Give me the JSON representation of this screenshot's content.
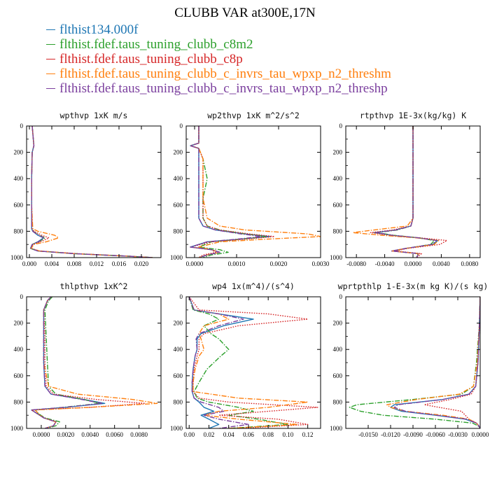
{
  "title": "CLUBB VAR at300E,17N",
  "legend": [
    {
      "label": "flthist134.000f",
      "color": "#1f77b4",
      "dash": "solid"
    },
    {
      "label": "flthist.fdef.taus_tuning_clubb_c8m2",
      "color": "#2ca02c",
      "dash": "dashdot"
    },
    {
      "label": "flthist.fdef.taus_tuning_clubb_c8p",
      "color": "#d62728",
      "dash": "dotted"
    },
    {
      "label": "flthist.fdef.taus_tuning_clubb_c_invrs_tau_wpxp_n2_threshm",
      "color": "#ff7f0e",
      "dash": "dashdot"
    },
    {
      "label": "flthist.fdef.taus_tuning_clubb_c_invrs_tau_wpxp_n2_threshp",
      "color": "#7b3f9e",
      "dash": "dashdot"
    }
  ],
  "chart_data": [
    {
      "type": "line",
      "title": "wpthvp  1xK m/s",
      "xlim": [
        -0.0005,
        0.0235
      ],
      "ylim": [
        1000,
        0
      ],
      "xticks": [
        "0.000",
        "0.004",
        "0.008",
        "0.012",
        "0.016",
        "0.020"
      ],
      "xtick_values": [
        0,
        0.004,
        0.008,
        0.012,
        0.016,
        0.02
      ],
      "yticks": [
        "0",
        "200",
        "400",
        "600",
        "800",
        "1000"
      ],
      "y": [
        0,
        150,
        200,
        400,
        600,
        780,
        800,
        830,
        850,
        880,
        900,
        930,
        950,
        970,
        990,
        1000
      ],
      "series": [
        {
          "values": [
            0.0005,
            0.0008,
            0.0005,
            0.0004,
            0.0004,
            0.0004,
            0.0006,
            0.0015,
            0.0025,
            0.0015,
            0.0005,
            0.0002,
            0.0015,
            0.008,
            0.018,
            0.022
          ]
        },
        {
          "values": [
            0.0005,
            0.0008,
            0.0005,
            0.0004,
            0.0004,
            0.0004,
            0.0007,
            0.0017,
            0.0028,
            0.0017,
            0.0005,
            0.0002,
            0.0016,
            0.008,
            0.018,
            0.022
          ]
        },
        {
          "values": [
            0.0005,
            0.0008,
            0.0005,
            0.0004,
            0.0004,
            0.0005,
            0.0008,
            0.0022,
            0.0035,
            0.002,
            0.0006,
            0.0003,
            0.0018,
            0.0085,
            0.018,
            0.022
          ]
        },
        {
          "values": [
            0.0005,
            0.0008,
            0.0005,
            0.0004,
            0.0004,
            0.0006,
            0.0015,
            0.0045,
            0.0052,
            0.003,
            0.0008,
            0.0003,
            0.0018,
            0.008,
            0.018,
            0.022
          ]
        },
        {
          "values": [
            0.0005,
            0.0008,
            0.0005,
            0.0004,
            0.0004,
            0.0004,
            0.0006,
            0.0016,
            0.0026,
            0.0016,
            0.0005,
            0.0002,
            0.0015,
            0.008,
            0.018,
            0.022
          ]
        }
      ]
    },
    {
      "type": "line",
      "title": "wp2thvp  1xK m^2/s^2",
      "xlim": [
        -0.0002,
        0.003
      ],
      "ylim": [
        1000,
        0
      ],
      "xticks": [
        "0.0000",
        "0.0010",
        "0.0020",
        "0.0030"
      ],
      "xtick_values": [
        0,
        0.001,
        0.002,
        0.003
      ],
      "yticks": [
        "0",
        "200",
        "400",
        "600",
        "800",
        "1000"
      ],
      "y": [
        0,
        130,
        150,
        170,
        250,
        400,
        550,
        700,
        760,
        790,
        820,
        840,
        860,
        880,
        920,
        940,
        960,
        980,
        1000
      ],
      "series": [
        {
          "values": [
            0.0001,
            0.0001,
            -0.0001,
            0.0001,
            0.0001,
            0.0001,
            0.0001,
            0.0001,
            0.0002,
            0.0005,
            0.0012,
            0.0018,
            0.0011,
            0.0003,
            -0.0001,
            0.0004,
            0.0006,
            0.0003,
            0.0001
          ]
        },
        {
          "values": [
            0.0001,
            0.0001,
            -0.0001,
            0.0001,
            0.0002,
            0.0003,
            0.0002,
            0.0002,
            0.0003,
            0.0006,
            0.0012,
            0.0017,
            0.0011,
            0.0004,
            0.0001,
            0.0006,
            0.0008,
            0.0004,
            0.0002
          ]
        },
        {
          "values": [
            0.0001,
            0.0001,
            -0.0001,
            0.0001,
            0.0002,
            0.0002,
            0.0002,
            0.0002,
            0.0003,
            0.0006,
            0.0013,
            0.0019,
            0.0012,
            0.0004,
            -0.0001,
            0.0004,
            0.0005,
            0.0002,
            0.0001
          ]
        },
        {
          "values": [
            0.0001,
            0.0001,
            -0.0001,
            0.0001,
            0.0002,
            0.0002,
            0.0002,
            0.0003,
            0.0006,
            0.0012,
            0.0027,
            0.003,
            0.0017,
            0.0006,
            0.0001,
            0.0004,
            0.0006,
            0.0003,
            0.0001
          ]
        },
        {
          "values": [
            0.0001,
            0.0001,
            -0.0001,
            0.0001,
            0.0001,
            0.0001,
            0.0001,
            0.0001,
            0.0002,
            0.0005,
            0.0011,
            0.0016,
            0.001,
            0.0003,
            -0.0001,
            0.0004,
            0.0006,
            0.0003,
            0.0001
          ]
        }
      ]
    },
    {
      "type": "line",
      "title": "rtpthvp  1E-3x(kg/kg) K",
      "xlim": [
        -0.0095,
        0.0095
      ],
      "ylim": [
        1000,
        0
      ],
      "xticks": [
        "-0.0080",
        "-0.0040",
        "0.0000",
        "0.0040",
        "0.0080"
      ],
      "xtick_values": [
        -0.008,
        -0.004,
        0,
        0.004,
        0.008
      ],
      "yticks": [
        "0",
        "200",
        "400",
        "600",
        "800",
        "1000"
      ],
      "y": [
        0,
        500,
        700,
        760,
        790,
        810,
        830,
        850,
        870,
        900,
        930,
        950,
        970,
        1000
      ],
      "series": [
        {
          "values": [
            0,
            0,
            0,
            -0.0003,
            -0.0025,
            -0.0055,
            -0.003,
            0.0008,
            0.0035,
            0.0028,
            -0.001,
            -0.003,
            0.0008,
            0.0005
          ]
        },
        {
          "values": [
            0,
            0,
            0,
            -0.0003,
            -0.0022,
            -0.005,
            -0.0028,
            0.0008,
            0.003,
            0.0025,
            -0.001,
            -0.0028,
            0.0007,
            0.0005
          ]
        },
        {
          "values": [
            0,
            0,
            0,
            -0.0003,
            -0.0028,
            -0.006,
            -0.0035,
            0.001,
            0.0048,
            0.0038,
            -0.0008,
            -0.0025,
            0.0012,
            0.0005
          ]
        },
        {
          "values": [
            0,
            0,
            0,
            -0.0008,
            -0.0055,
            -0.0085,
            -0.0045,
            0.0005,
            0.0036,
            0.003,
            -0.001,
            -0.003,
            0.0008,
            0.0005
          ]
        },
        {
          "values": [
            0,
            0,
            0,
            -0.0003,
            -0.0024,
            -0.0052,
            -0.003,
            0.0008,
            0.0033,
            0.0027,
            -0.001,
            -0.003,
            0.0008,
            0.0005
          ]
        }
      ]
    },
    {
      "type": "line",
      "title": "thlpthvp  1xK^2",
      "xlim": [
        -0.0012,
        0.0098
      ],
      "ylim": [
        1000,
        0
      ],
      "xticks": [
        "0.0000",
        "0.0020",
        "0.0040",
        "0.0060",
        "0.0080"
      ],
      "xtick_values": [
        0,
        0.002,
        0.004,
        0.006,
        0.008
      ],
      "yticks": [
        "0",
        "200",
        "400",
        "600",
        "800",
        "1000"
      ],
      "y": [
        0,
        30,
        100,
        300,
        500,
        680,
        740,
        780,
        810,
        840,
        860,
        890,
        920,
        950,
        980,
        1000
      ],
      "series": [
        {
          "values": [
            0.0008,
            0.0005,
            0.0002,
            0.0002,
            0.0002,
            0.0003,
            0.0008,
            0.0035,
            0.0052,
            0.002,
            -0.0008,
            -0.0003,
            0.0002,
            0.0012,
            0.001,
            0.0003
          ]
        },
        {
          "values": [
            0.0009,
            0.0006,
            0.0003,
            0.0004,
            0.0005,
            0.0006,
            0.0012,
            0.0035,
            0.0048,
            0.0018,
            -0.0005,
            -0.0002,
            0.0003,
            0.0015,
            0.0012,
            0.0004
          ]
        },
        {
          "values": [
            0.0008,
            0.0005,
            0.0002,
            0.0003,
            0.0003,
            0.0004,
            0.001,
            0.0045,
            0.0085,
            0.004,
            -0.0008,
            -0.0003,
            0.0002,
            0.0012,
            0.001,
            0.0003
          ]
        },
        {
          "values": [
            0.0008,
            0.0005,
            0.0002,
            0.0002,
            0.0002,
            0.0006,
            0.003,
            0.0075,
            0.0095,
            0.004,
            -0.0005,
            -0.0002,
            0.0002,
            0.0012,
            0.001,
            0.0003
          ]
        },
        {
          "values": [
            0.0008,
            0.0005,
            0.0002,
            0.0002,
            0.0002,
            0.0003,
            0.0008,
            0.0033,
            0.005,
            0.0019,
            -0.0008,
            -0.0003,
            0.0002,
            0.0012,
            0.001,
            0.0003
          ]
        }
      ]
    },
    {
      "type": "line",
      "title": "wp4  1x(m^4)/(s^4)",
      "xlim": [
        -0.003,
        0.133
      ],
      "ylim": [
        1000,
        0
      ],
      "xticks": [
        "0.00",
        "0.02",
        "0.04",
        "0.06",
        "0.08",
        "0.10",
        "0.12"
      ],
      "xtick_values": [
        0,
        0.02,
        0.04,
        0.06,
        0.08,
        0.1,
        0.12
      ],
      "yticks": [
        "0",
        "200",
        "400",
        "600",
        "800",
        "1000"
      ],
      "y": [
        0,
        100,
        130,
        170,
        220,
        280,
        320,
        400,
        450,
        550,
        650,
        720,
        770,
        800,
        840,
        870,
        900,
        930,
        970,
        1000
      ],
      "series": [
        {
          "values": [
            0,
            0.005,
            0.03,
            0.065,
            0.035,
            0.012,
            0.008,
            0.008,
            0.006,
            0.004,
            0.003,
            0.003,
            0.005,
            0.01,
            0.015,
            0.025,
            0.012,
            0.02,
            0.03,
            0.02
          ]
        },
        {
          "values": [
            0,
            0.004,
            0.02,
            0.03,
            0.015,
            0.022,
            0.03,
            0.04,
            0.032,
            0.018,
            0.01,
            0.005,
            0.008,
            0.02,
            0.05,
            0.065,
            0.04,
            0.07,
            0.1,
            0.04
          ]
        },
        {
          "values": [
            0,
            0.01,
            0.08,
            0.12,
            0.05,
            0.015,
            0.01,
            0.01,
            0.008,
            0.005,
            0.004,
            0.004,
            0.01,
            0.04,
            0.13,
            0.08,
            0.03,
            0.09,
            0.12,
            0.05
          ]
        },
        {
          "values": [
            0,
            0.005,
            0.03,
            0.04,
            0.015,
            0.01,
            0.012,
            0.015,
            0.01,
            0.006,
            0.004,
            0.004,
            0.05,
            0.12,
            0.08,
            0.03,
            0.015,
            0.05,
            0.11,
            0.04
          ]
        },
        {
          "values": [
            0,
            0.005,
            0.03,
            0.055,
            0.03,
            0.01,
            0.007,
            0.008,
            0.006,
            0.004,
            0.003,
            0.003,
            0.005,
            0.012,
            0.03,
            0.035,
            0.015,
            0.03,
            0.06,
            0.03
          ]
        }
      ]
    },
    {
      "type": "line",
      "title": "wprtpthlp  1-E-3x(m kg K)/(s kg)",
      "xlim": [
        -0.018,
        0.0
      ],
      "ylim": [
        1000,
        0
      ],
      "xticks": [
        "-0.0150",
        "-0.0120",
        "-0.0090",
        "-0.0060",
        "-0.0030",
        "0.0000"
      ],
      "xtick_values": [
        -0.015,
        -0.012,
        -0.009,
        -0.006,
        -0.003,
        0.0
      ],
      "yticks": [
        "0",
        "200",
        "400",
        "600",
        "800",
        "1000"
      ],
      "y": [
        0,
        200,
        500,
        680,
        740,
        780,
        820,
        840,
        870,
        900,
        930,
        960,
        980,
        1000
      ],
      "series": [
        {
          "values": [
            0,
            -0.0001,
            -0.0003,
            -0.0006,
            -0.0015,
            -0.005,
            -0.0115,
            -0.012,
            -0.0105,
            -0.006,
            -0.002,
            -0.0005,
            -0.0002,
            0
          ]
        },
        {
          "values": [
            0,
            -0.0001,
            -0.0005,
            -0.0009,
            -0.0025,
            -0.009,
            -0.0165,
            -0.0175,
            -0.016,
            -0.013,
            -0.006,
            -0.001,
            -0.0003,
            0
          ]
        },
        {
          "values": [
            0,
            -0.0001,
            -0.0003,
            -0.0006,
            -0.0012,
            -0.004,
            -0.0075,
            -0.0055,
            -0.0025,
            -0.002,
            -0.0015,
            -0.0005,
            -0.0002,
            0
          ]
        },
        {
          "values": [
            0,
            -0.0001,
            -0.0004,
            -0.0009,
            -0.0028,
            -0.0085,
            -0.0125,
            -0.012,
            -0.01,
            -0.005,
            -0.0015,
            -0.0005,
            -0.0002,
            0
          ]
        },
        {
          "values": [
            0,
            -0.0001,
            -0.0003,
            -0.0006,
            -0.0015,
            -0.005,
            -0.011,
            -0.0115,
            -0.01,
            -0.0058,
            -0.0018,
            -0.0005,
            -0.0002,
            0
          ]
        }
      ]
    }
  ]
}
